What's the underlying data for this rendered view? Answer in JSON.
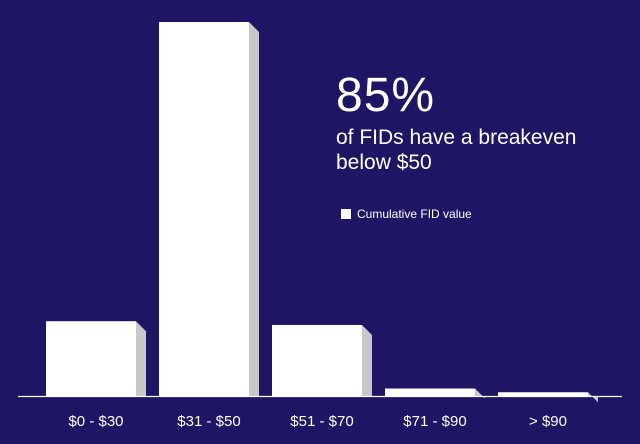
{
  "chart_data": {
    "type": "bar",
    "categories": [
      "$0 - $30",
      "$31 - $50",
      "$51 - $70",
      "$71 - $90",
      "> $90"
    ],
    "series": [
      {
        "name": "Cumulative FID value",
        "values": [
          20,
          100,
          19,
          2,
          1
        ]
      }
    ],
    "ylim": [
      0,
      100
    ],
    "grid": false,
    "legend_position": "right",
    "bar_color": "#ffffff",
    "bar_side_color": "#c8c8cc",
    "background_color": "#1e1565",
    "axis_color": "#ffffff"
  },
  "annotation": {
    "headline": "85%",
    "text": "of FIDs have a breakeven below $50"
  },
  "legend": {
    "label": "Cumulative FID value"
  }
}
